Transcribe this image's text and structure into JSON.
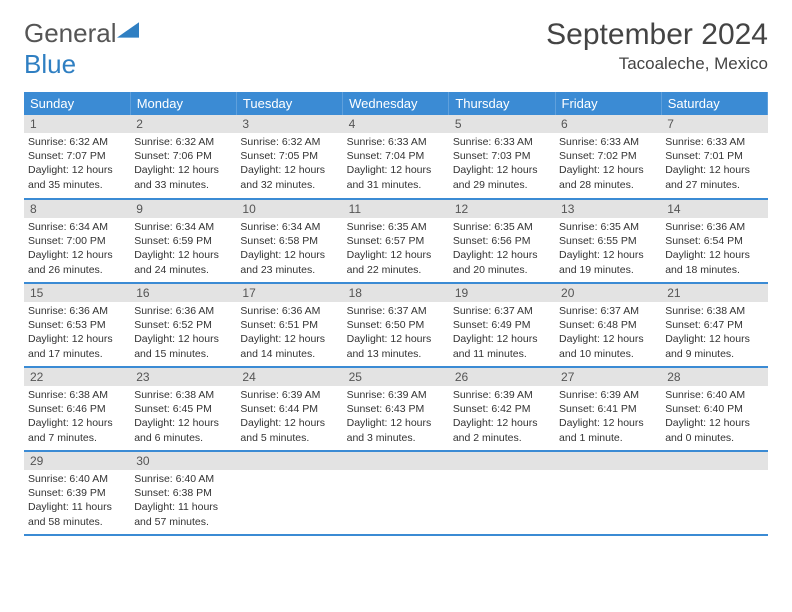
{
  "logo": {
    "text1": "General",
    "text2": "Blue"
  },
  "title": "September 2024",
  "location": "Tacoaleche, Mexico",
  "weekdays": [
    "Sunday",
    "Monday",
    "Tuesday",
    "Wednesday",
    "Thursday",
    "Friday",
    "Saturday"
  ],
  "colors": {
    "header_bg": "#3b8bd4",
    "header_text": "#ffffff",
    "daynum_bg": "#e3e3e3",
    "border": "#3b8bd4",
    "logo_blue": "#2f7fc2",
    "text": "#333333"
  },
  "typography": {
    "title_fontsize": 30,
    "location_fontsize": 17,
    "weekday_fontsize": 13,
    "daynum_fontsize": 12,
    "body_fontsize": 10.5
  },
  "days": [
    {
      "n": "1",
      "sunrise": "6:32 AM",
      "sunset": "7:07 PM",
      "daylight": "12 hours and 35 minutes."
    },
    {
      "n": "2",
      "sunrise": "6:32 AM",
      "sunset": "7:06 PM",
      "daylight": "12 hours and 33 minutes."
    },
    {
      "n": "3",
      "sunrise": "6:32 AM",
      "sunset": "7:05 PM",
      "daylight": "12 hours and 32 minutes."
    },
    {
      "n": "4",
      "sunrise": "6:33 AM",
      "sunset": "7:04 PM",
      "daylight": "12 hours and 31 minutes."
    },
    {
      "n": "5",
      "sunrise": "6:33 AM",
      "sunset": "7:03 PM",
      "daylight": "12 hours and 29 minutes."
    },
    {
      "n": "6",
      "sunrise": "6:33 AM",
      "sunset": "7:02 PM",
      "daylight": "12 hours and 28 minutes."
    },
    {
      "n": "7",
      "sunrise": "6:33 AM",
      "sunset": "7:01 PM",
      "daylight": "12 hours and 27 minutes."
    },
    {
      "n": "8",
      "sunrise": "6:34 AM",
      "sunset": "7:00 PM",
      "daylight": "12 hours and 26 minutes."
    },
    {
      "n": "9",
      "sunrise": "6:34 AM",
      "sunset": "6:59 PM",
      "daylight": "12 hours and 24 minutes."
    },
    {
      "n": "10",
      "sunrise": "6:34 AM",
      "sunset": "6:58 PM",
      "daylight": "12 hours and 23 minutes."
    },
    {
      "n": "11",
      "sunrise": "6:35 AM",
      "sunset": "6:57 PM",
      "daylight": "12 hours and 22 minutes."
    },
    {
      "n": "12",
      "sunrise": "6:35 AM",
      "sunset": "6:56 PM",
      "daylight": "12 hours and 20 minutes."
    },
    {
      "n": "13",
      "sunrise": "6:35 AM",
      "sunset": "6:55 PM",
      "daylight": "12 hours and 19 minutes."
    },
    {
      "n": "14",
      "sunrise": "6:36 AM",
      "sunset": "6:54 PM",
      "daylight": "12 hours and 18 minutes."
    },
    {
      "n": "15",
      "sunrise": "6:36 AM",
      "sunset": "6:53 PM",
      "daylight": "12 hours and 17 minutes."
    },
    {
      "n": "16",
      "sunrise": "6:36 AM",
      "sunset": "6:52 PM",
      "daylight": "12 hours and 15 minutes."
    },
    {
      "n": "17",
      "sunrise": "6:36 AM",
      "sunset": "6:51 PM",
      "daylight": "12 hours and 14 minutes."
    },
    {
      "n": "18",
      "sunrise": "6:37 AM",
      "sunset": "6:50 PM",
      "daylight": "12 hours and 13 minutes."
    },
    {
      "n": "19",
      "sunrise": "6:37 AM",
      "sunset": "6:49 PM",
      "daylight": "12 hours and 11 minutes."
    },
    {
      "n": "20",
      "sunrise": "6:37 AM",
      "sunset": "6:48 PM",
      "daylight": "12 hours and 10 minutes."
    },
    {
      "n": "21",
      "sunrise": "6:38 AM",
      "sunset": "6:47 PM",
      "daylight": "12 hours and 9 minutes."
    },
    {
      "n": "22",
      "sunrise": "6:38 AM",
      "sunset": "6:46 PM",
      "daylight": "12 hours and 7 minutes."
    },
    {
      "n": "23",
      "sunrise": "6:38 AM",
      "sunset": "6:45 PM",
      "daylight": "12 hours and 6 minutes."
    },
    {
      "n": "24",
      "sunrise": "6:39 AM",
      "sunset": "6:44 PM",
      "daylight": "12 hours and 5 minutes."
    },
    {
      "n": "25",
      "sunrise": "6:39 AM",
      "sunset": "6:43 PM",
      "daylight": "12 hours and 3 minutes."
    },
    {
      "n": "26",
      "sunrise": "6:39 AM",
      "sunset": "6:42 PM",
      "daylight": "12 hours and 2 minutes."
    },
    {
      "n": "27",
      "sunrise": "6:39 AM",
      "sunset": "6:41 PM",
      "daylight": "12 hours and 1 minute."
    },
    {
      "n": "28",
      "sunrise": "6:40 AM",
      "sunset": "6:40 PM",
      "daylight": "12 hours and 0 minutes."
    },
    {
      "n": "29",
      "sunrise": "6:40 AM",
      "sunset": "6:39 PM",
      "daylight": "11 hours and 58 minutes."
    },
    {
      "n": "30",
      "sunrise": "6:40 AM",
      "sunset": "6:38 PM",
      "daylight": "11 hours and 57 minutes."
    }
  ],
  "labels": {
    "sunrise": "Sunrise:",
    "sunset": "Sunset:",
    "daylight": "Daylight:"
  },
  "grid": {
    "rows": 5,
    "cols": 7,
    "trailing_empty": 5
  }
}
